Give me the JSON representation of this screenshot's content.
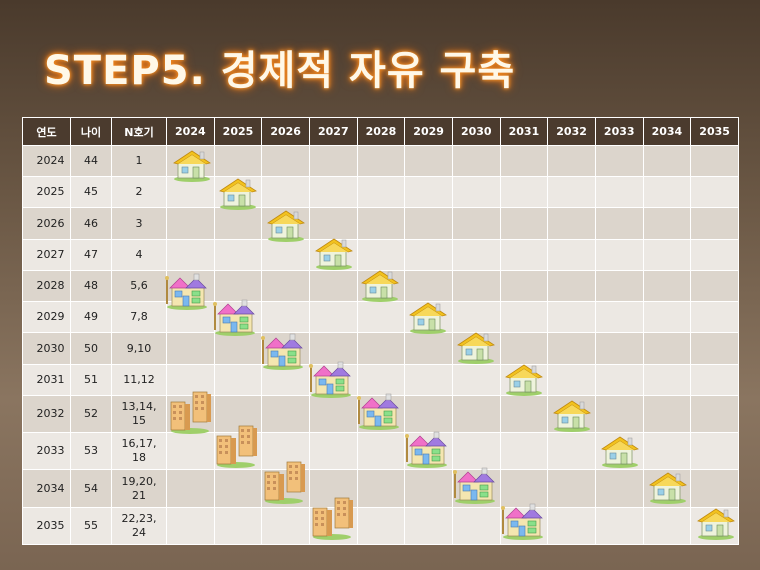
{
  "title": "STEP5. 경제적 자유 구축",
  "headers": [
    "연도",
    "나이",
    "N호기",
    "2024",
    "2025",
    "2026",
    "2027",
    "2028",
    "2029",
    "2030",
    "2031",
    "2032",
    "2033",
    "2034",
    "2035"
  ],
  "rows": [
    {
      "year": "2024",
      "age": "44",
      "units": "1"
    },
    {
      "year": "2025",
      "age": "45",
      "units": "2"
    },
    {
      "year": "2026",
      "age": "46",
      "units": "3"
    },
    {
      "year": "2027",
      "age": "47",
      "units": "4"
    },
    {
      "year": "2028",
      "age": "48",
      "units": "5,6"
    },
    {
      "year": "2029",
      "age": "49",
      "units": "7,8"
    },
    {
      "year": "2030",
      "age": "50",
      "units": "9,10"
    },
    {
      "year": "2031",
      "age": "51",
      "units": "11,12"
    },
    {
      "year": "2032",
      "age": "52",
      "units": "13,14,\n15"
    },
    {
      "year": "2033",
      "age": "53",
      "units": "16,17,\n18"
    },
    {
      "year": "2034",
      "age": "54",
      "units": "19,20,\n21"
    },
    {
      "year": "2035",
      "age": "55",
      "units": "22,23,\n24"
    }
  ],
  "icons": {
    "yellow_house": "house-yellow-roof-icon",
    "colorful_house": "house-colorful-icon",
    "building": "apartment-building-icon"
  }
}
